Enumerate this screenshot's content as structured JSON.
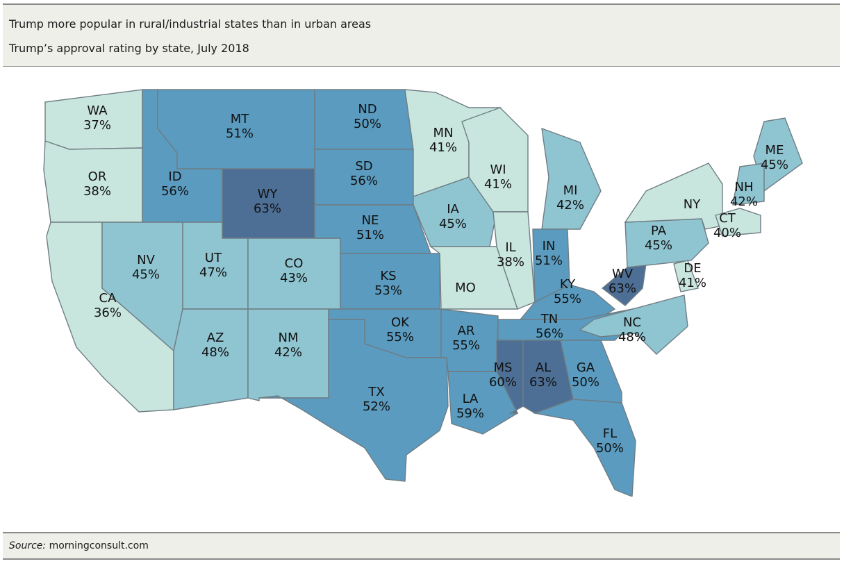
{
  "header": {
    "title": "Trump more popular in rural/industrial states than in urban areas",
    "subtitle": "Trump’s approval rating by state, July 2018"
  },
  "footer": {
    "source_label": "Source:",
    "source_text": "morningconsult.com"
  },
  "legend_colors": {
    "lowest": "#c9e6de",
    "low": "#8fc4d1",
    "mid": "#5a9bbf",
    "highest": "#4e6f95"
  },
  "chart_data": {
    "type": "choropleth",
    "title": "Trump’s approval rating by state, July 2018",
    "states": [
      {
        "code": "WA",
        "value": "37%"
      },
      {
        "code": "OR",
        "value": "38%"
      },
      {
        "code": "CA",
        "value": "36%"
      },
      {
        "code": "ID",
        "value": "56%"
      },
      {
        "code": "NV",
        "value": "45%"
      },
      {
        "code": "MT",
        "value": "51%"
      },
      {
        "code": "WY",
        "value": "63%"
      },
      {
        "code": "UT",
        "value": "47%"
      },
      {
        "code": "AZ",
        "value": "48%"
      },
      {
        "code": "CO",
        "value": "43%"
      },
      {
        "code": "NM",
        "value": "42%"
      },
      {
        "code": "ND",
        "value": "50%"
      },
      {
        "code": "SD",
        "value": "56%"
      },
      {
        "code": "NE",
        "value": "51%"
      },
      {
        "code": "KS",
        "value": "53%"
      },
      {
        "code": "OK",
        "value": "55%"
      },
      {
        "code": "TX",
        "value": "52%"
      },
      {
        "code": "MN",
        "value": "41%"
      },
      {
        "code": "IA",
        "value": "45%"
      },
      {
        "code": "MO",
        "value": ""
      },
      {
        "code": "AR",
        "value": "55%"
      },
      {
        "code": "LA",
        "value": "59%"
      },
      {
        "code": "WI",
        "value": "41%"
      },
      {
        "code": "IL",
        "value": "38%"
      },
      {
        "code": "MI",
        "value": "42%"
      },
      {
        "code": "IN",
        "value": "51%"
      },
      {
        "code": "KY",
        "value": "55%"
      },
      {
        "code": "TN",
        "value": "56%"
      },
      {
        "code": "MS",
        "value": "60%"
      },
      {
        "code": "AL",
        "value": "63%"
      },
      {
        "code": "GA",
        "value": "50%"
      },
      {
        "code": "FL",
        "value": "50%"
      },
      {
        "code": "NC",
        "value": "48%"
      },
      {
        "code": "WV",
        "value": "63%"
      },
      {
        "code": "PA",
        "value": "45%"
      },
      {
        "code": "NY",
        "value": ""
      },
      {
        "code": "ME",
        "value": "45%"
      },
      {
        "code": "NH",
        "value": "42%"
      },
      {
        "code": "CT",
        "value": "40%"
      },
      {
        "code": "DE",
        "value": "41%"
      }
    ]
  }
}
